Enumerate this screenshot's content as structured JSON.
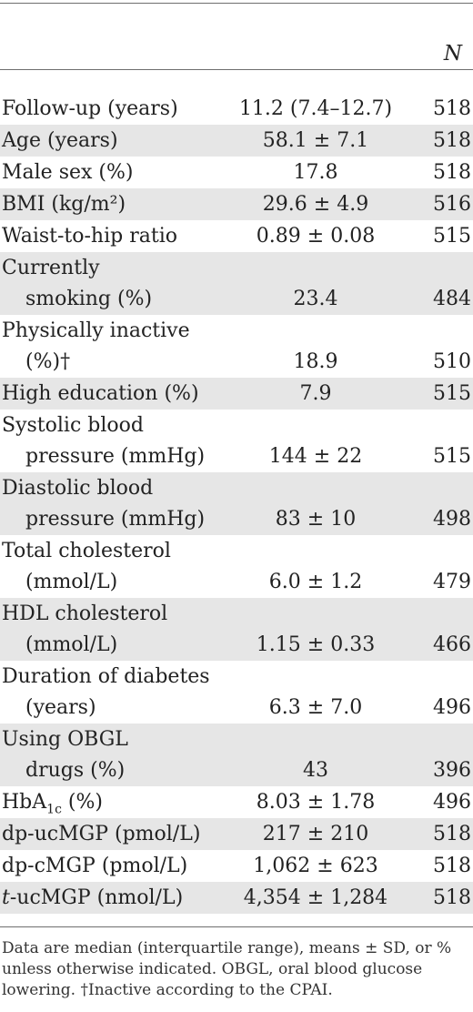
{
  "header": {
    "n_label": "N"
  },
  "rows": [
    {
      "label1": "Follow-up (years)",
      "label2": "",
      "value": "11.2 (7.4–12.7)",
      "n": "518",
      "shaded": false
    },
    {
      "label1": "Age (years)",
      "label2": "",
      "value": "58.1 ± 7.1",
      "n": "518",
      "shaded": true
    },
    {
      "label1": "Male sex (%)",
      "label2": "",
      "value": "17.8",
      "n": "518",
      "shaded": false
    },
    {
      "label1": "BMI (kg/m²)",
      "label2": "",
      "value": "29.6 ± 4.9",
      "n": "516",
      "shaded": true
    },
    {
      "label1": "Waist-to-hip ratio",
      "label2": "",
      "value": "0.89 ± 0.08",
      "n": "515",
      "shaded": false
    },
    {
      "label1": "Currently",
      "label2": "smoking (%)",
      "value": "23.4",
      "n": "484",
      "shaded": true
    },
    {
      "label1": "Physically inactive",
      "label2": "(%)†",
      "value": "18.9",
      "n": "510",
      "shaded": false
    },
    {
      "label1": "High education (%)",
      "label2": "",
      "value": "7.9",
      "n": "515",
      "shaded": true
    },
    {
      "label1": "Systolic blood",
      "label2": "pressure (mmHg)",
      "value": "144 ± 22",
      "n": "515",
      "shaded": false
    },
    {
      "label1": "Diastolic blood",
      "label2": "pressure (mmHg)",
      "value": "83 ± 10",
      "n": "498",
      "shaded": true
    },
    {
      "label1": "Total cholesterol",
      "label2": "(mmol/L)",
      "value": "6.0 ± 1.2",
      "n": "479",
      "shaded": false
    },
    {
      "label1": "HDL cholesterol",
      "label2": "(mmol/L)",
      "value": "1.15 ± 0.33",
      "n": "466",
      "shaded": true
    },
    {
      "label1": "Duration of diabetes",
      "label2": "(years)",
      "value": "6.3 ± 7.0",
      "n": "496",
      "shaded": false
    },
    {
      "label1": "Using OBGL",
      "label2": "drugs (%)",
      "value": "43",
      "n": "396",
      "shaded": true
    },
    {
      "label1": "HbA1c (%)",
      "label2": "",
      "value": "8.03 ± 1.78",
      "n": "496",
      "shaded": false
    },
    {
      "label1": "dp-ucMGP (pmol/L)",
      "label2": "",
      "value": "217 ± 210",
      "n": "518",
      "shaded": true
    },
    {
      "label1": "dp-cMGP (pmol/L)",
      "label2": "",
      "value": "1,062 ± 623",
      "n": "518",
      "shaded": false
    },
    {
      "label1": "t-ucMGP (nmol/L)",
      "label2": "",
      "value": "4,354 ± 1,284",
      "n": "518",
      "shaded": true
    }
  ],
  "footnote": "Data are median (interquartile range), means ± SD, or % unless otherwise indicated. OBGL, oral blood glucose lowering. †Inactive according to the CPAI."
}
